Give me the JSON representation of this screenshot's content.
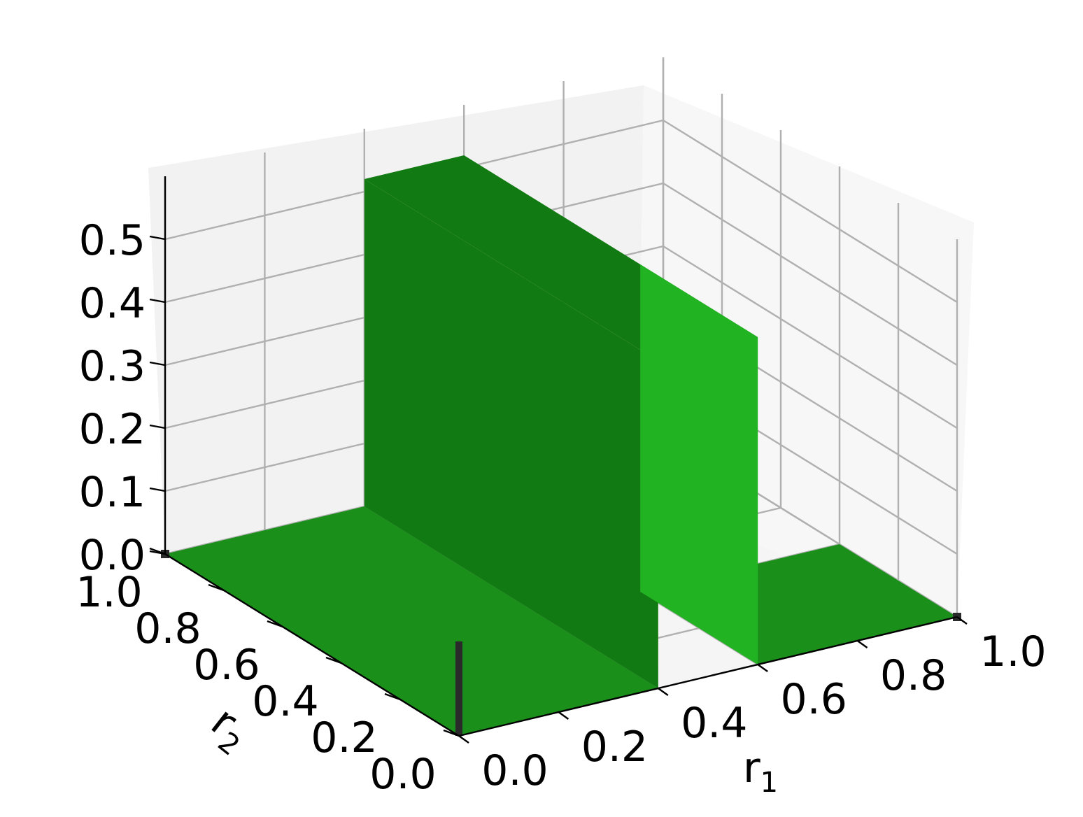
{
  "chart_data": {
    "type": "surface3d",
    "title": "",
    "xlabel": "r",
    "xlabel_sub": "1",
    "ylabel": "r",
    "ylabel_sub": "2",
    "zlabel": "",
    "xlim": [
      0.0,
      1.0
    ],
    "ylim": [
      0.0,
      1.0
    ],
    "zlim": [
      0.0,
      0.5
    ],
    "x_ticks": [
      "0.0",
      "0.2",
      "0.4",
      "0.6",
      "0.8",
      "1.0"
    ],
    "y_ticks": [
      "0.0",
      "0.2",
      "0.4",
      "0.6",
      "0.8",
      "1.0"
    ],
    "z_ticks": [
      "0.0",
      "0.1",
      "0.2",
      "0.3",
      "0.4",
      "0.5"
    ],
    "grid": true,
    "surface_color": "#1a8f1a",
    "surface_light_color": "#22b322",
    "surface_dark_color": "#127a12",
    "marker_color": "#2a2a2a",
    "description_values": {
      "base_level": 0.0,
      "ridge_level": 0.52,
      "ridge_r1_range": [
        0.4,
        0.6
      ],
      "ridge_r2_range": [
        0.4,
        0.6
      ]
    },
    "markers": [
      {
        "r1": 0.0,
        "r2": 1.0,
        "z": 0.0
      },
      {
        "r1": 1.0,
        "r2": 0.0,
        "z": 0.0
      },
      {
        "r1": 0.0,
        "r2": 0.0,
        "z": 0.0,
        "z_top": 0.15
      }
    ]
  }
}
